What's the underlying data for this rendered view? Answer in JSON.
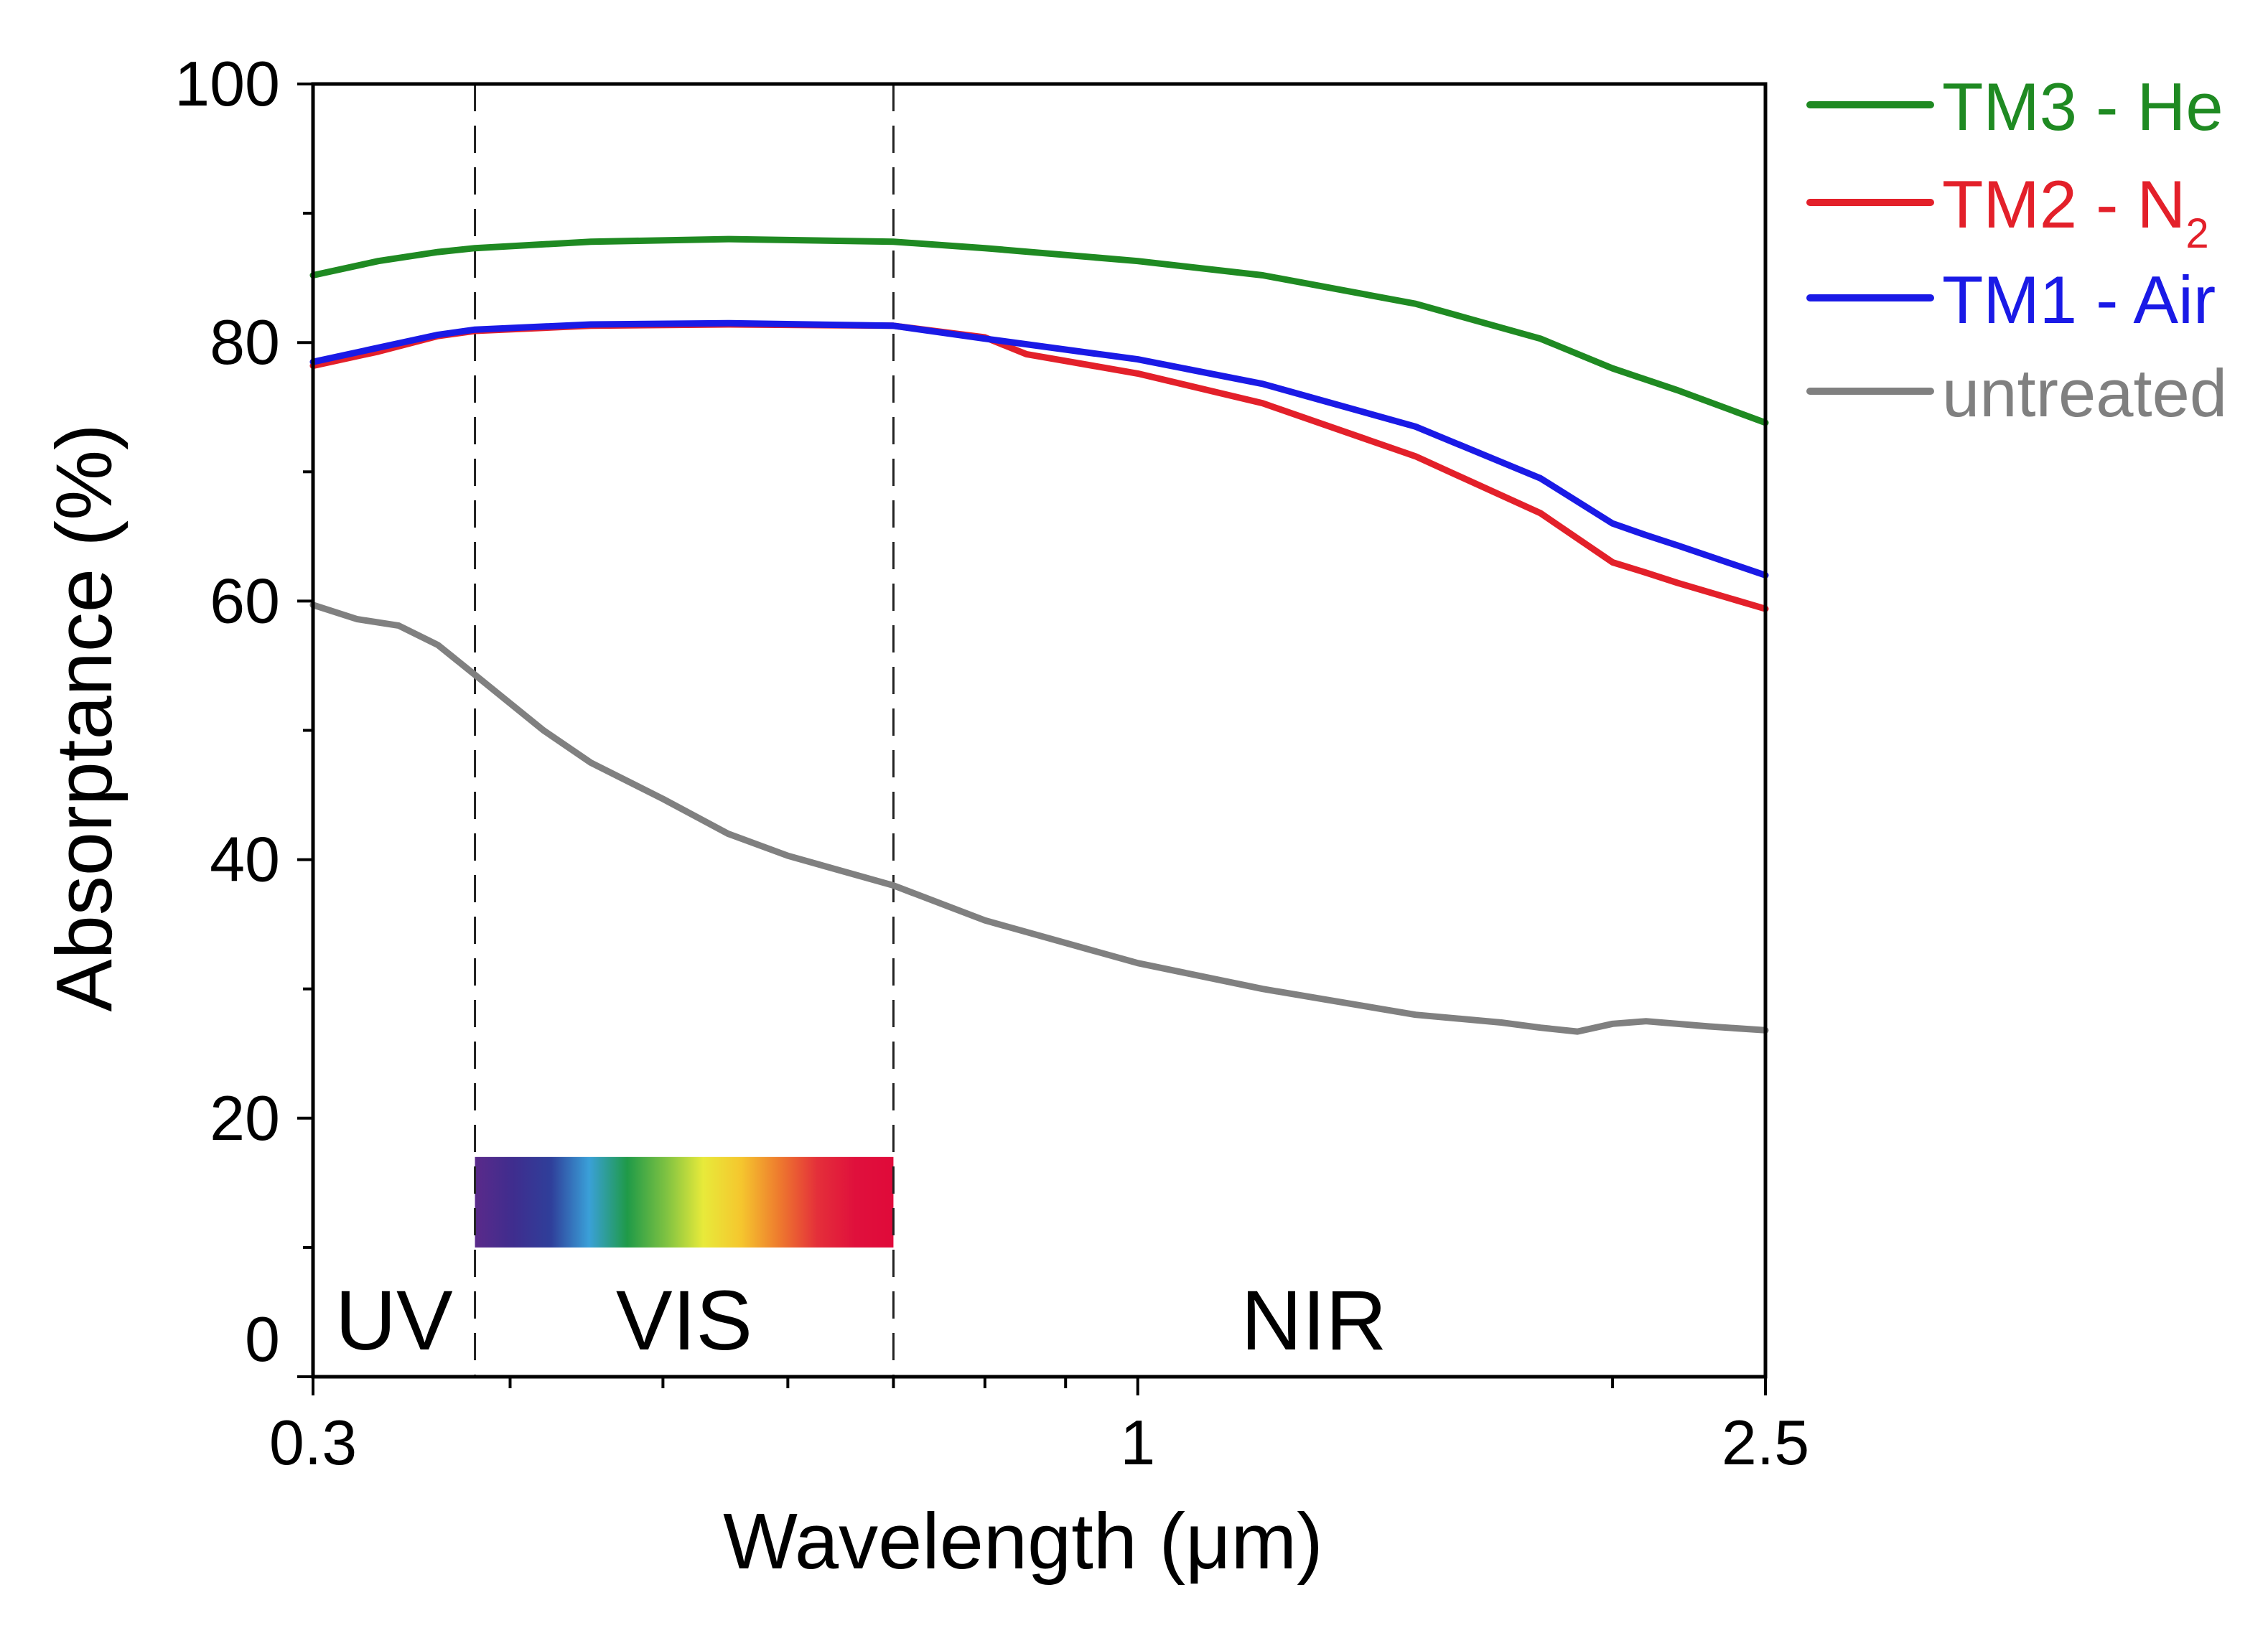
{
  "chart_data": {
    "type": "line",
    "x_scale": "log",
    "xlabel": "Wavelength (μm)",
    "ylabel": "Absorptance (%)",
    "xlim": [
      0.3,
      2.5
    ],
    "ylim": [
      0,
      100
    ],
    "x_ticks": [
      {
        "value": 0.3,
        "label": "0.3"
      },
      {
        "value": 1,
        "label": "1"
      },
      {
        "value": 2.5,
        "label": "2.5"
      }
    ],
    "x_minor_ticks": [
      0.4,
      0.5,
      0.6,
      0.7,
      0.8,
      0.9,
      2
    ],
    "y_ticks": [
      {
        "value": 0,
        "label": "0"
      },
      {
        "value": 20,
        "label": "20"
      },
      {
        "value": 40,
        "label": "40"
      },
      {
        "value": 60,
        "label": "60"
      },
      {
        "value": 80,
        "label": "80"
      },
      {
        "value": 100,
        "label": "100"
      }
    ],
    "y_minor_ticks": [
      10,
      30,
      50,
      70,
      90
    ],
    "regions": [
      {
        "label": "UV",
        "from": 0.3,
        "to": 0.38
      },
      {
        "label": "VIS",
        "from": 0.38,
        "to": 0.7
      },
      {
        "label": "NIR",
        "from": 0.7,
        "to": 2.5
      }
    ],
    "region_boundaries": [
      0.38,
      0.7
    ],
    "visible_spectrum_bar": {
      "from": 0.38,
      "to": 0.7,
      "y_bottom": 10,
      "y_top": 17,
      "colors": [
        "#5a2a8a",
        "#3f2d8e",
        "#2f3f9a",
        "#3aa0d8",
        "#1f9a48",
        "#7cc142",
        "#e8ea3a",
        "#f5c62e",
        "#ee7a2e",
        "#e42f3a",
        "#e0103c",
        "#e00a3a"
      ]
    },
    "series": [
      {
        "name": "TM3 - He",
        "name_main": "TM3 - He",
        "name_sub": "",
        "color": "#1f8a22",
        "x": [
          0.3,
          0.33,
          0.36,
          0.38,
          0.45,
          0.55,
          0.7,
          0.8,
          1.0,
          1.2,
          1.5,
          1.8,
          2.0,
          2.2,
          2.5
        ],
        "y": [
          85.2,
          86.3,
          87.0,
          87.3,
          87.8,
          88.0,
          87.8,
          87.3,
          86.3,
          85.2,
          83.0,
          80.3,
          78.0,
          76.3,
          73.8
        ]
      },
      {
        "name": "TM2 - N2",
        "name_main": "TM2 - N",
        "name_sub": "2",
        "color": "#e3202a",
        "x": [
          0.3,
          0.33,
          0.36,
          0.38,
          0.45,
          0.55,
          0.7,
          0.8,
          0.85,
          1.0,
          1.2,
          1.5,
          1.8,
          2.0,
          2.1,
          2.2,
          2.5
        ],
        "y": [
          78.2,
          79.3,
          80.5,
          80.9,
          81.3,
          81.4,
          81.3,
          80.4,
          79.1,
          77.6,
          75.3,
          71.2,
          66.8,
          63.0,
          62.2,
          61.4,
          59.4
        ]
      },
      {
        "name": "TM1 - Air",
        "name_main": "TM1 - Air",
        "name_sub": "",
        "color": "#1a1ae6",
        "x": [
          0.3,
          0.33,
          0.36,
          0.38,
          0.45,
          0.55,
          0.7,
          0.8,
          1.0,
          1.2,
          1.5,
          1.8,
          2.0,
          2.1,
          2.2,
          2.5
        ],
        "y": [
          78.5,
          79.6,
          80.6,
          81.0,
          81.4,
          81.5,
          81.3,
          80.3,
          78.7,
          76.8,
          73.5,
          69.5,
          66.0,
          65.1,
          64.3,
          62.0
        ]
      },
      {
        "name": "untreated",
        "name_main": "untreated",
        "name_sub": "",
        "color": "#808080",
        "x": [
          0.3,
          0.32,
          0.34,
          0.36,
          0.38,
          0.42,
          0.45,
          0.5,
          0.55,
          0.6,
          0.7,
          0.8,
          1.0,
          1.2,
          1.5,
          1.7,
          1.8,
          1.9,
          2.0,
          2.1,
          2.3,
          2.5
        ],
        "y": [
          59.7,
          58.6,
          58.1,
          56.6,
          54.3,
          50.0,
          47.5,
          44.7,
          42.0,
          40.3,
          38.0,
          35.3,
          32.0,
          30.0,
          28.0,
          27.4,
          27.0,
          26.7,
          27.3,
          27.5,
          27.1,
          26.8
        ]
      }
    ]
  }
}
